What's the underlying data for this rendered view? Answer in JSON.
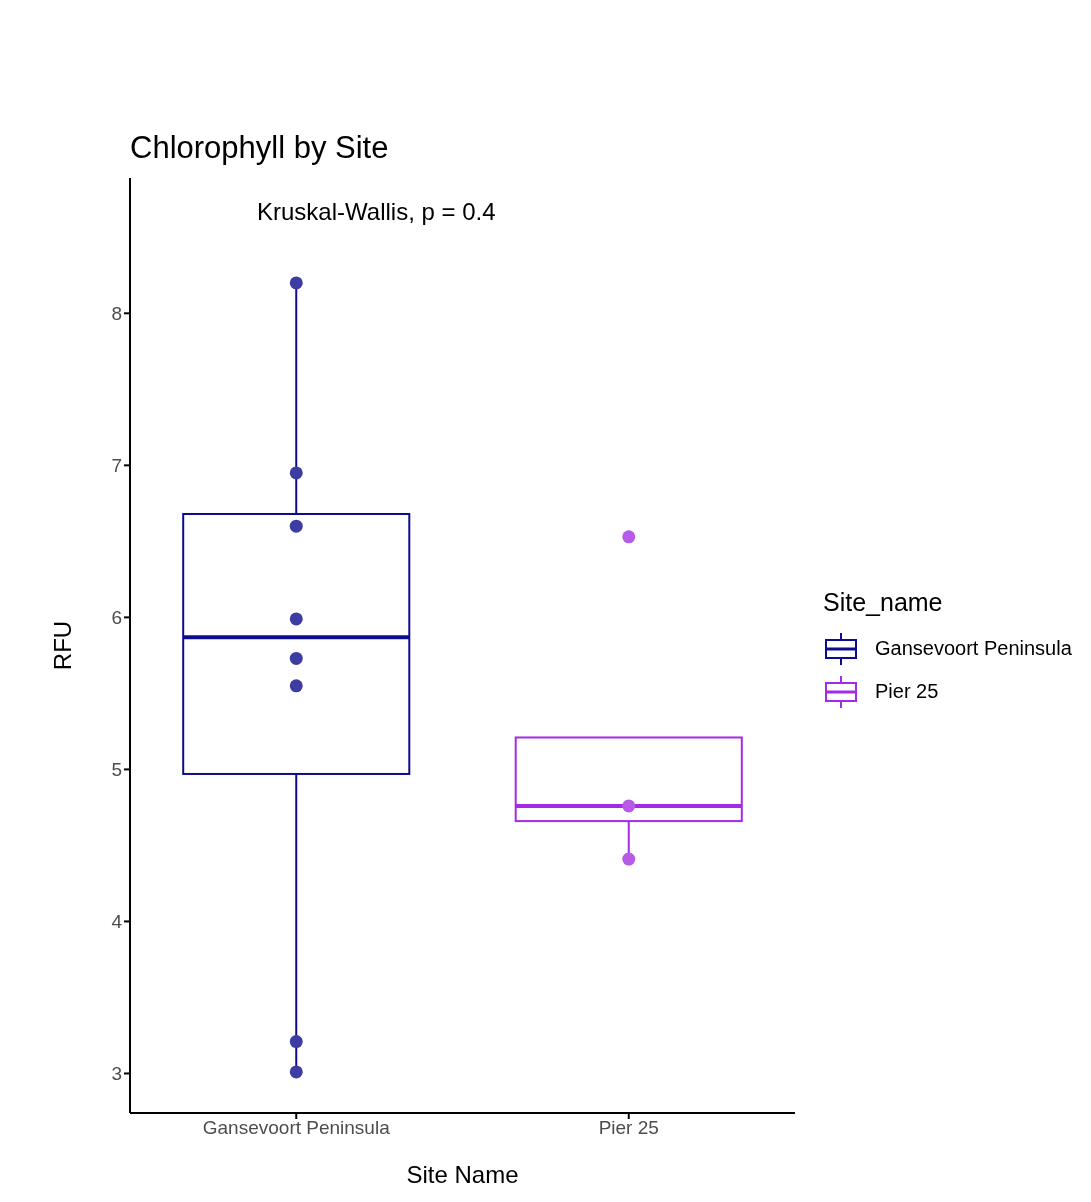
{
  "chart_data": {
    "type": "box",
    "title": "Chlorophyll by Site",
    "xlabel": "Site Name",
    "ylabel": "RFU",
    "legend_title": "Site_name",
    "annotations": [
      "Kruskal-Wallis, p = 0.4"
    ],
    "categories": [
      "Gansevoort Peninsula",
      "Pier 25"
    ],
    "ylim": [
      2.74,
      8.89
    ],
    "yticks": [
      3,
      4,
      5,
      6,
      7,
      8
    ],
    "legend": "right",
    "series": [
      {
        "name": "Gansevoort Peninsula",
        "color": "#0d0d8c",
        "boxes": [
          {
            "low": 3.01,
            "q1": 4.97,
            "median": 5.87,
            "q3": 6.68,
            "high": 8.2
          },
          null
        ]
      },
      {
        "name": "Pier 25",
        "color": "#a52ae8",
        "boxes": [
          null,
          {
            "low": 4.41,
            "q1": 4.66,
            "median": 4.76,
            "q3": 5.21,
            "high": 5.21
          }
        ]
      },
      {
        "type": "scatter",
        "color": "#3c3ca3",
        "marker": "circle",
        "x": [
          "Gansevoort Peninsula",
          "Gansevoort Peninsula",
          "Gansevoort Peninsula",
          "Gansevoort Peninsula",
          "Gansevoort Peninsula",
          "Gansevoort Peninsula",
          "Gansevoort Peninsula",
          "Gansevoort Peninsula"
        ],
        "values": [
          8.2,
          6.95,
          6.6,
          5.99,
          5.73,
          5.55,
          3.21,
          3.01
        ]
      },
      {
        "type": "scatter",
        "color": "#b65ae8",
        "marker": "circle",
        "x": [
          "Pier 25",
          "Pier 25",
          "Pier 25"
        ],
        "values": [
          6.53,
          4.76,
          4.41
        ]
      }
    ]
  }
}
